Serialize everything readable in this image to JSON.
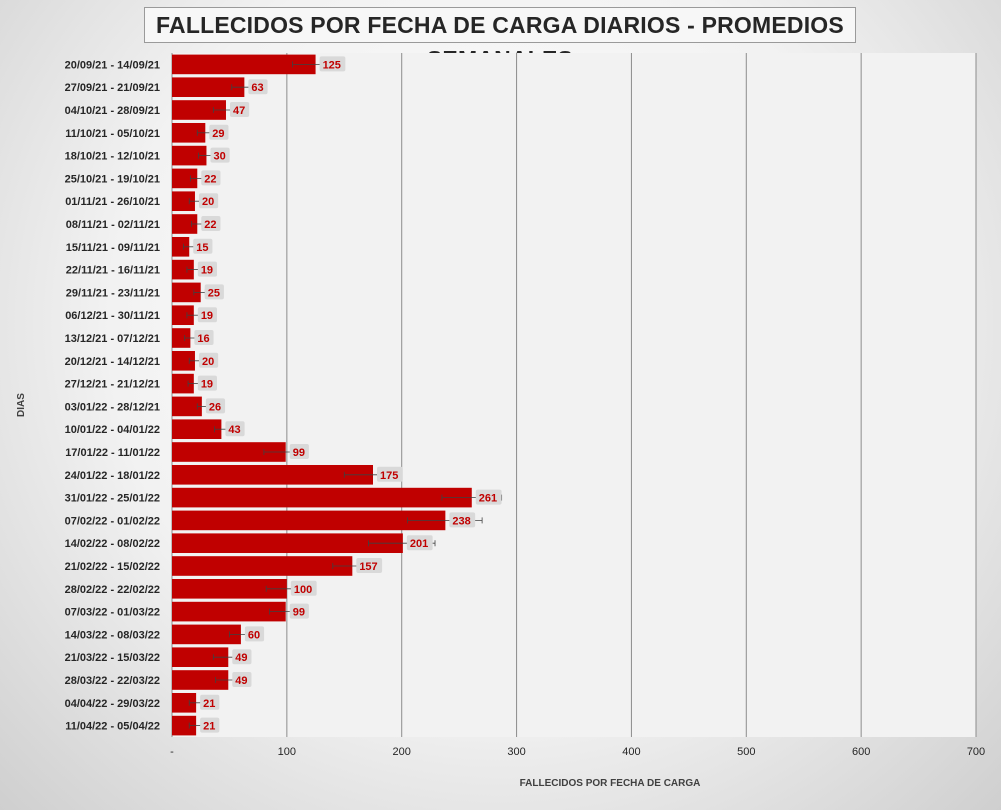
{
  "chart_data": {
    "type": "bar",
    "orientation": "horizontal",
    "title": "FALLECIDOS POR FECHA DE CARGA DIARIOS - PROMEDIOS SEMANALES",
    "xlabel": "FALLECIDOS POR FECHA DE CARGA",
    "ylabel": "DIAS",
    "xlim": [
      0,
      700
    ],
    "x_ticks": [
      0,
      100,
      200,
      300,
      400,
      500,
      600,
      700
    ],
    "x_tick_labels": [
      "-",
      "100",
      "200",
      "300",
      "400",
      "500",
      "600",
      "700"
    ],
    "grid": "vertical",
    "legend": "none",
    "bar_color": "#c00000",
    "categories": [
      "20/09/21 - 14/09/21",
      "27/09/21 - 21/09/21",
      "04/10/21 - 28/09/21",
      "11/10/21 - 05/10/21",
      "18/10/21 - 12/10/21",
      "25/10/21 - 19/10/21",
      "01/11/21 - 26/10/21",
      "08/11/21 - 02/11/21",
      "15/11/21 - 09/11/21",
      "22/11/21 - 16/11/21",
      "29/11/21 - 23/11/21",
      "06/12/21 - 30/11/21",
      "13/12/21 - 07/12/21",
      "20/12/21 - 14/12/21",
      "27/12/21 - 21/12/21",
      "03/01/22 - 28/12/21",
      "10/01/22 - 04/01/22",
      "17/01/22 - 11/01/22",
      "24/01/22 - 18/01/22",
      "31/01/22 - 25/01/22",
      "07/02/22 - 01/02/22",
      "14/02/22 - 08/02/22",
      "21/02/22 - 15/02/22",
      "28/02/22 - 22/02/22",
      "07/03/22 - 01/03/22",
      "14/03/22 - 08/03/22",
      "21/03/22 - 15/03/22",
      "28/03/22 - 22/03/22",
      "04/04/22 - 29/03/22",
      "11/04/22 - 05/04/22"
    ],
    "values": [
      125,
      63,
      47,
      29,
      30,
      22,
      20,
      22,
      15,
      19,
      25,
      19,
      16,
      20,
      19,
      26,
      43,
      99,
      175,
      261,
      238,
      201,
      157,
      100,
      99,
      60,
      49,
      49,
      21,
      21
    ],
    "error_range": [
      [
        105,
        150
      ],
      [
        52,
        70
      ],
      [
        36,
        56
      ],
      [
        22,
        35
      ],
      [
        23,
        36
      ],
      [
        16,
        27
      ],
      [
        15,
        24
      ],
      [
        17,
        26
      ],
      [
        10,
        20
      ],
      [
        13,
        24
      ],
      [
        19,
        29
      ],
      [
        13,
        24
      ],
      [
        11,
        20
      ],
      [
        15,
        24
      ],
      [
        14,
        23
      ],
      [
        22,
        31
      ],
      [
        37,
        48
      ],
      [
        80,
        117
      ],
      [
        150,
        198
      ],
      [
        235,
        287
      ],
      [
        205,
        270
      ],
      [
        171,
        229
      ],
      [
        140,
        170
      ],
      [
        82,
        117
      ],
      [
        85,
        112
      ],
      [
        50,
        67
      ],
      [
        36,
        57
      ],
      [
        38,
        58
      ],
      [
        15,
        27
      ],
      [
        15,
        27
      ]
    ]
  }
}
